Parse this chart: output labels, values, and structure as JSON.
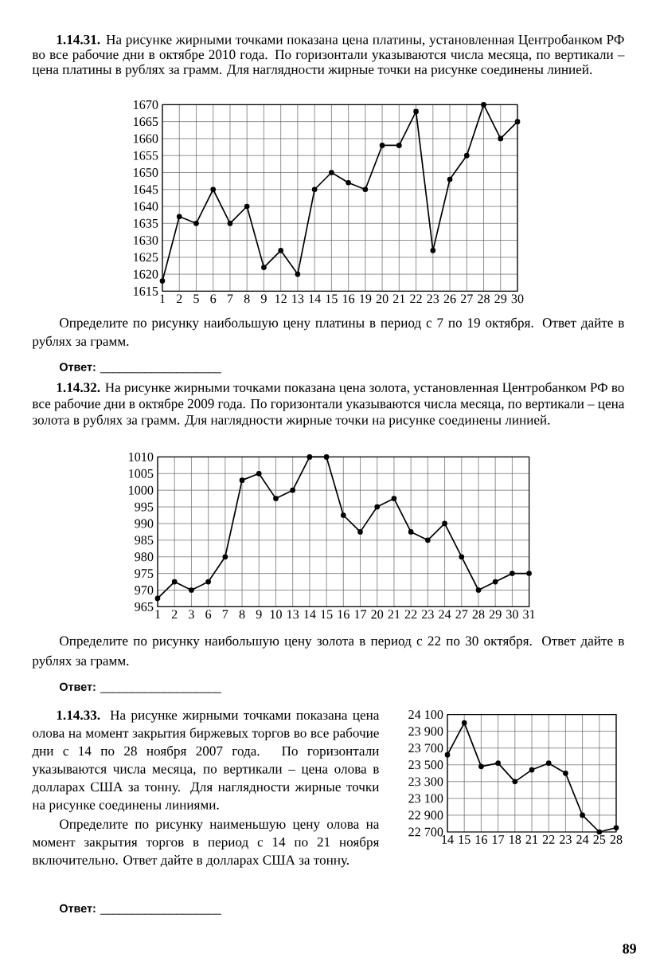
{
  "chart_data": [
    {
      "type": "line",
      "title": "**1.14.31.** На рисунке жирными точками показана цена платины, установленная Центробанком РФ во все рабочие дни в октябре 2010 года. По горизонтали указываются числа месяца, по вертикали – цена платины в рублях за грамм. Для наглядности жирные точки на рисунке соединены линией.",
      "annotations": [
        "Определите по рисунку наибольшую цену платины в период с 7 по 19 октября. Ответ дайте в рублях за грамм.",
        "**Ответ:** ___________________"
      ],
      "categories": [
        "1",
        "2",
        "5",
        "6",
        "7",
        "8",
        "9",
        "12",
        "13",
        "14",
        "15",
        "16",
        "19",
        "20",
        "21",
        "22",
        "23",
        "26",
        "27",
        "28",
        "29",
        "30"
      ],
      "values": [
        1618,
        1637,
        1635,
        1645,
        1635,
        1640,
        1622,
        1627,
        1620,
        1645,
        1650,
        1647,
        1645,
        1658,
        1658,
        1668,
        1627,
        1648,
        1655,
        1670,
        1660,
        1665
      ],
      "color": "#000000",
      "marker": "circle",
      "line_style": "solid",
      "grid": true,
      "ylim": [
        1615,
        1670
      ],
      "yticks": [
        1615,
        1620,
        1625,
        1630,
        1635,
        1640,
        1645,
        1650,
        1655,
        1660,
        1665,
        1670
      ]
    },
    {
      "type": "line",
      "title": "**1.14.32.** На рисунке жирными точками показана цена золота, установленная Центробанком РФ во все рабочие дни в октябре 2009 года. По горизонтали указываются числа месяца, по вертикали – цена золота в рублях за грамм. Для наглядности жирные точки на рисунке соединены линией.",
      "annotations": [
        "Определите по рисунку наибольшую цену золота в период с 22 по 30 октября. Ответ дайте в рублях за грамм.",
        "**Ответ:** ___________________"
      ],
      "categories": [
        "1",
        "2",
        "3",
        "6",
        "7",
        "8",
        "9",
        "10",
        "13",
        "14",
        "15",
        "16",
        "17",
        "20",
        "21",
        "22",
        "23",
        "24",
        "27",
        "28",
        "29",
        "30",
        "31"
      ],
      "values": [
        967.5,
        972.5,
        970,
        972.5,
        980,
        1003,
        1005,
        997.5,
        1000,
        1010,
        1010,
        992.5,
        987.5,
        995,
        997.5,
        987.5,
        985,
        990,
        980,
        970,
        972.5,
        975,
        975
      ],
      "color": "#000000",
      "marker": "circle",
      "line_style": "solid",
      "grid": true,
      "ylim": [
        965,
        1010
      ],
      "yticks": [
        965,
        970,
        975,
        980,
        985,
        990,
        995,
        1000,
        1005,
        1010
      ]
    },
    {
      "type": "line",
      "title": "**1.14.33.** На рисунке жирными точками показана цена олова на момент закрытия биржевых торгов во все рабочие дни с 14 по 28 ноября 2007 года. По горизонтали указываются числа месяца, по вертикали – цена олова в долларах США за тонну. Для наглядности жирные точки на рисунке соединены линиями.",
      "annotations": [
        "Определите по рисунку наименьшую цену олова на момент закрытия торгов в период с 14 по 21 ноября включительно. Ответ дайте в долларах США за тонну.",
        "**Ответ:** ___________________",
        "89"
      ],
      "categories": [
        "14",
        "15",
        "16",
        "17",
        "18",
        "21",
        "22",
        "23",
        "24",
        "25",
        "28"
      ],
      "values": [
        23620,
        24000,
        23480,
        23520,
        23300,
        23440,
        23520,
        23400,
        22900,
        22700,
        22750
      ],
      "color": "#000000",
      "marker": "circle",
      "line_style": "solid",
      "grid": true,
      "ylim": [
        22700,
        24100
      ],
      "yticks": [
        {
          "value": 22700,
          "label": "22 700"
        },
        {
          "value": 22900,
          "label": "22 900"
        },
        {
          "value": 23100,
          "label": "23 100"
        },
        {
          "value": 23300,
          "label": "23 300"
        },
        {
          "value": 23500,
          "label": "23 500"
        },
        {
          "value": 23700,
          "label": "23 700"
        },
        {
          "value": 23900,
          "label": "23 900"
        },
        {
          "value": 24100,
          "label": "24 100"
        }
      ]
    }
  ]
}
